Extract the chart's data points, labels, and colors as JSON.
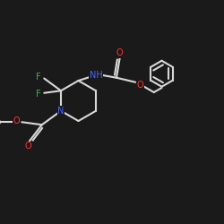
{
  "bg_color": "#1a1a1a",
  "bond_color": "#d8d8d8",
  "bond_width": 1.5,
  "N_color": "#4466ff",
  "O_color": "#ff3333",
  "F_color": "#33bb44",
  "font_size": 7.0,
  "figsize": [
    2.5,
    2.5
  ],
  "dpi": 100,
  "xlim": [
    0,
    10
  ],
  "ylim": [
    0,
    10
  ]
}
